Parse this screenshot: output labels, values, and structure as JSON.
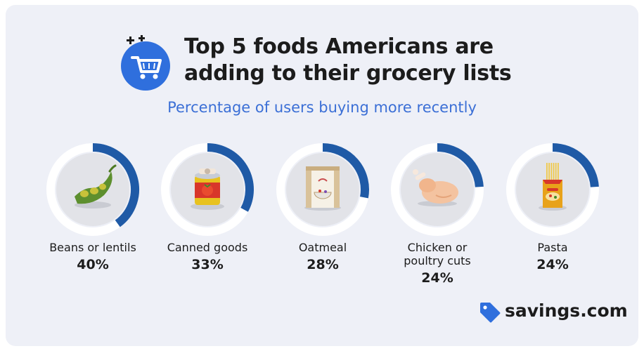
{
  "header": {
    "title_line1": "Top 5 foods Americans are",
    "title_line2": "adding to their grocery lists",
    "subtitle": "Percentage of users buying more recently",
    "cart_icon": "shopping-cart-icon",
    "sparkle_icon": "plus-sparkle-icon"
  },
  "colors": {
    "background": "#eef0f7",
    "ring_fill": "#1f5aa6",
    "ring_track": "#ffffff",
    "inner_circle": "#e2e3e8",
    "accent_blue": "#3b6fd6",
    "badge_blue": "#2f6fdd"
  },
  "chart_data": {
    "type": "pie",
    "title": "Top 5 foods Americans are adding to their grocery lists",
    "subtitle": "Percentage of users buying more recently",
    "categories": [
      "Beans or lentils",
      "Canned goods",
      "Oatmeal",
      "Chicken or poultry cuts",
      "Pasta"
    ],
    "values": [
      40,
      33,
      28,
      24,
      24
    ],
    "unit": "%",
    "items": [
      {
        "label": "Beans or lentils",
        "value": 40,
        "value_label": "40%",
        "icon": "edamame-bean-pod-icon"
      },
      {
        "label": "Canned goods",
        "value": 33,
        "value_label": "33%",
        "icon": "tomato-can-icon"
      },
      {
        "label": "Oatmeal",
        "value": 28,
        "value_label": "28%",
        "icon": "oatmeal-box-icon"
      },
      {
        "label": "Chicken or poultry cuts",
        "value": 24,
        "value_label": "24%",
        "icon": "roast-chicken-icon"
      },
      {
        "label": "Pasta",
        "value": 24,
        "value_label": "24%",
        "icon": "pasta-box-icon"
      }
    ]
  },
  "brand": {
    "name": "savings.com",
    "icon": "price-tag-icon"
  }
}
